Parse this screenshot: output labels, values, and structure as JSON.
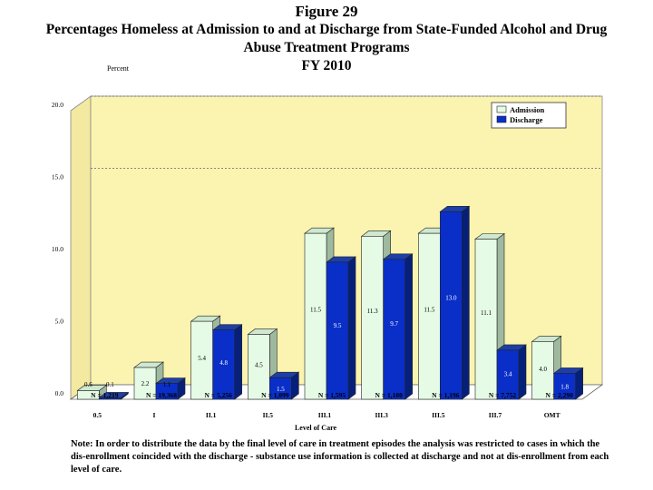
{
  "figure_label": "Figure 29",
  "title": "Percentages Homeless at Admission to and at Discharge from State-Funded Alcohol and Drug Abuse Treatment Programs",
  "fy_label": "FY 2010",
  "note": "Note: In order to distribute the data by the final level of care in treatment episodes the analysis was restricted to cases in which the dis-enrollment coincided with the discharge - substance use information is collected at discharge and not at dis-enrollment from each level of care.",
  "colors": {
    "plot_bg": "#fbf3b0",
    "plot_side": "#f3e9a0",
    "admission": "#e6fbe6",
    "admission_top": "#cfe8cf",
    "admission_side": "#9fb99f",
    "discharge": "#0a2fc8",
    "discharge_top": "#1d3fa8",
    "discharge_side": "#06207a"
  },
  "chart_data": {
    "type": "bar",
    "title": "Percentages Homeless at Admission to and at Discharge from State-Funded Alcohol and Drug Abuse Treatment Programs",
    "ylabel": "Percent",
    "xlabel": "Level of Care",
    "ylim": [
      0,
      20
    ],
    "yticks": [
      "0.0",
      "5.0",
      "10.0",
      "15.0",
      "20.0"
    ],
    "gridlines": [
      15,
      20
    ],
    "categories": [
      "0.5",
      "I",
      "II.1",
      "II.5",
      "III.1",
      "III.3",
      "III.5",
      "III.7",
      "OMT"
    ],
    "n_labels": [
      "N = 1,219",
      "N = 19,368",
      "N = 5,256",
      "N = 1,099",
      "N = 1,595",
      "N = 1,180",
      "N = 1,196",
      "N = 7,752",
      "N = 2,290"
    ],
    "series": [
      {
        "name": "Admission",
        "values": [
          0.6,
          2.2,
          5.4,
          4.5,
          11.5,
          11.3,
          11.5,
          11.1,
          4.0
        ],
        "labels": [
          "0.6",
          "2.2",
          "5.4",
          "4.5",
          "11.5",
          "11.3",
          "11.5",
          "11.1",
          "4.0"
        ]
      },
      {
        "name": "Discharge",
        "values": [
          0.1,
          1.1,
          4.8,
          1.5,
          9.5,
          9.7,
          13.0,
          3.4,
          1.8
        ],
        "labels": [
          "0.1",
          "1.1",
          "4.8",
          "1.5",
          "9.5",
          "9.7",
          "13.0",
          "3.4",
          "1.8"
        ]
      }
    ],
    "legend_position": "top-right"
  }
}
